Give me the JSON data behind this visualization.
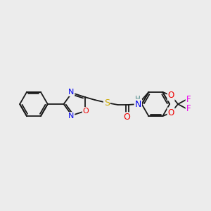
{
  "background_color": "#ececec",
  "bond_color": "#1a1a1a",
  "atom_colors": {
    "N": "#0000ee",
    "O": "#ee0000",
    "S": "#ccaa00",
    "F": "#ee00ee",
    "H": "#4a8888",
    "C": "#1a1a1a"
  },
  "figsize": [
    3.0,
    3.0
  ],
  "dpi": 100
}
